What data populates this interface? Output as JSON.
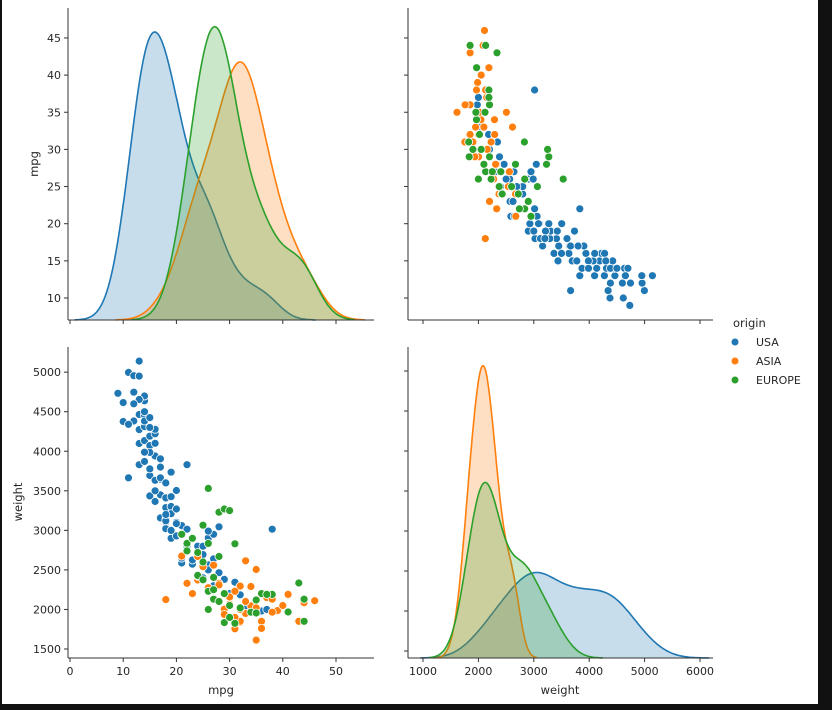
{
  "chart_data": {
    "type": "scatter",
    "title": "",
    "variables": [
      "mpg",
      "weight"
    ],
    "hue": "origin",
    "legend": {
      "title": "origin",
      "placement": "right"
    },
    "colors": {
      "USA": "#1f77b4",
      "ASIA": "#ff7f0e",
      "EUROPE": "#2ca02c"
    },
    "axes": {
      "mpg": {
        "label": "mpg",
        "range": [
          7,
          55
        ],
        "ticks": [
          0,
          10,
          20,
          30,
          40,
          50
        ],
        "ticklabels": [
          "0",
          "10",
          "20",
          "30",
          "40",
          "50"
        ],
        "yticks": [
          10,
          15,
          20,
          25,
          30,
          35,
          40,
          45
        ],
        "yticklabels": [
          "10",
          "15",
          "20",
          "25",
          "30",
          "35",
          "40",
          "45"
        ]
      },
      "weight": {
        "label": "weight",
        "range": [
          1400,
          5300
        ],
        "ticks": [
          1000,
          2000,
          3000,
          4000,
          5000,
          6000
        ],
        "ticklabels": [
          "1000",
          "2000",
          "3000",
          "4000",
          "5000",
          "6000"
        ],
        "yticks": [
          1500,
          2000,
          2500,
          3000,
          3500,
          4000,
          4500,
          5000
        ],
        "yticklabels": [
          "1500",
          "2000",
          "2500",
          "3000",
          "3500",
          "4000",
          "4500",
          "5000"
        ]
      }
    },
    "diagonal": "kde",
    "series": [
      {
        "name": "USA",
        "points": [
          [
            9,
            4732
          ],
          [
            10,
            4615
          ],
          [
            10,
            4376
          ],
          [
            11,
            4997
          ],
          [
            11,
            3664
          ],
          [
            12,
            4955
          ],
          [
            12,
            4382
          ],
          [
            12,
            4746
          ],
          [
            13,
            5140
          ],
          [
            13,
            4464
          ],
          [
            13,
            4274
          ],
          [
            13,
            4098
          ],
          [
            13,
            3830
          ],
          [
            14,
            4638
          ],
          [
            14,
            4457
          ],
          [
            14,
            4312
          ],
          [
            14,
            4135
          ],
          [
            14,
            3870
          ],
          [
            14,
            4699
          ],
          [
            14,
            4382
          ],
          [
            15,
            4425
          ],
          [
            15,
            4190
          ],
          [
            15,
            3693
          ],
          [
            15,
            3436
          ],
          [
            15,
            3777
          ],
          [
            15,
            4072
          ],
          [
            16,
            3940
          ],
          [
            16,
            4220
          ],
          [
            16,
            3365
          ],
          [
            16,
            4278
          ],
          [
            17,
            3449
          ],
          [
            17,
            3904
          ],
          [
            17,
            3645
          ],
          [
            17,
            3158
          ],
          [
            18,
            3102
          ],
          [
            18,
            3139
          ],
          [
            18,
            3410
          ],
          [
            18,
            3288
          ],
          [
            18,
            3021
          ],
          [
            18,
            3121
          ],
          [
            19,
            3302
          ],
          [
            19,
            3211
          ],
          [
            19,
            3425
          ],
          [
            19,
            2900
          ],
          [
            20,
            3102
          ],
          [
            20,
            3504
          ],
          [
            20,
            2930
          ],
          [
            20,
            3270
          ],
          [
            21,
            2587
          ],
          [
            21,
            2648
          ],
          [
            21,
            3060
          ],
          [
            22,
            2800
          ],
          [
            22,
            3015
          ],
          [
            22,
            2835
          ],
          [
            23,
            2572
          ],
          [
            24,
            2800
          ],
          [
            24,
            2434
          ],
          [
            25,
            2800
          ],
          [
            25,
            2694
          ],
          [
            26,
            2905
          ],
          [
            26,
            2565
          ],
          [
            26,
            2500
          ],
          [
            27,
            2950
          ],
          [
            27,
            2640
          ],
          [
            27,
            2300
          ],
          [
            28,
            2464
          ],
          [
            29,
            2380
          ],
          [
            30,
            2200
          ],
          [
            32,
            2185
          ],
          [
            34,
            2050
          ],
          [
            36,
            1980
          ],
          [
            38,
            3015
          ],
          [
            15,
            3986
          ],
          [
            13,
            4654
          ],
          [
            11,
            4341
          ],
          [
            14,
            3988
          ],
          [
            16,
            3633
          ],
          [
            17,
            3664
          ],
          [
            19,
            3735
          ],
          [
            22,
            3830
          ],
          [
            24,
            2670
          ],
          [
            26,
            2990
          ],
          [
            31,
            2345
          ],
          [
            33,
            2045
          ],
          [
            37,
            2000
          ],
          [
            20,
            3085
          ],
          [
            23,
            2625
          ],
          [
            25,
            2400
          ],
          [
            28,
            3045
          ],
          [
            21,
            2945
          ],
          [
            16,
            4100
          ],
          [
            15,
            4300
          ],
          [
            17,
            3800
          ],
          [
            18,
            3600
          ],
          [
            19,
            3000
          ],
          [
            14,
            4500
          ],
          [
            13,
            4950
          ],
          [
            16,
            3500
          ],
          [
            12,
            4600
          ],
          [
            18,
            3200
          ]
        ]
      },
      {
        "name": "ASIA",
        "points": [
          [
            18,
            2125
          ],
          [
            24,
            2372
          ],
          [
            27,
            2130
          ],
          [
            31,
            1773
          ],
          [
            35,
            1613
          ],
          [
            32,
            1836
          ],
          [
            29,
            2003
          ],
          [
            33,
            1950
          ],
          [
            37,
            2150
          ],
          [
            39,
            1985
          ],
          [
            40,
            2050
          ],
          [
            44,
            2085
          ],
          [
            46,
            2110
          ],
          [
            41,
            2190
          ],
          [
            36,
            1850
          ],
          [
            34,
            2045
          ],
          [
            32,
            2295
          ],
          [
            31,
            2230
          ],
          [
            30,
            2070
          ],
          [
            27,
            2560
          ],
          [
            25,
            2540
          ],
          [
            28,
            2330
          ],
          [
            22,
            2330
          ],
          [
            24,
            2670
          ],
          [
            26,
            2275
          ],
          [
            31,
            1755
          ],
          [
            38,
            1965
          ],
          [
            33,
            2615
          ],
          [
            35,
            2505
          ],
          [
            29,
            1937
          ],
          [
            32,
            1850
          ],
          [
            43,
            1850
          ],
          [
            36,
            1760
          ],
          [
            24,
            2420
          ],
          [
            23,
            2200
          ],
          [
            21,
            2675
          ],
          [
            34,
            2290
          ],
          [
            38,
            2130
          ],
          [
            28,
            2310
          ],
          [
            30,
            2158
          ],
          [
            32,
            2000
          ],
          [
            33,
            2100
          ],
          [
            31,
            1900
          ],
          [
            35,
            2020
          ]
        ]
      },
      {
        "name": "EUROPE",
        "points": [
          [
            26,
            3530
          ],
          [
            25,
            3065
          ],
          [
            28,
            3230
          ],
          [
            29,
            3270
          ],
          [
            30,
            3250
          ],
          [
            24,
            2430
          ],
          [
            26,
            2835
          ],
          [
            25,
            2375
          ],
          [
            22,
            2835
          ],
          [
            21,
            2950
          ],
          [
            23,
            2900
          ],
          [
            29,
            1834
          ],
          [
            31,
            1825
          ],
          [
            27,
            2130
          ],
          [
            35,
            2120
          ],
          [
            43,
            2335
          ],
          [
            44,
            2130
          ],
          [
            41,
            1968
          ],
          [
            36,
            2200
          ],
          [
            38,
            2190
          ],
          [
            29,
            2200
          ],
          [
            28,
            2670
          ],
          [
            31,
            2830
          ],
          [
            30,
            2050
          ],
          [
            32,
            2020
          ],
          [
            34,
            1965
          ],
          [
            35,
            1955
          ],
          [
            26,
            2230
          ],
          [
            27,
            2405
          ],
          [
            24,
            2720
          ],
          [
            22,
            2740
          ],
          [
            44,
            1850
          ],
          [
            37,
            2190
          ],
          [
            26,
            2000
          ],
          [
            30,
            1900
          ],
          [
            25,
            2600
          ],
          [
            27,
            2250
          ],
          [
            28,
            2100
          ]
        ]
      }
    ]
  }
}
